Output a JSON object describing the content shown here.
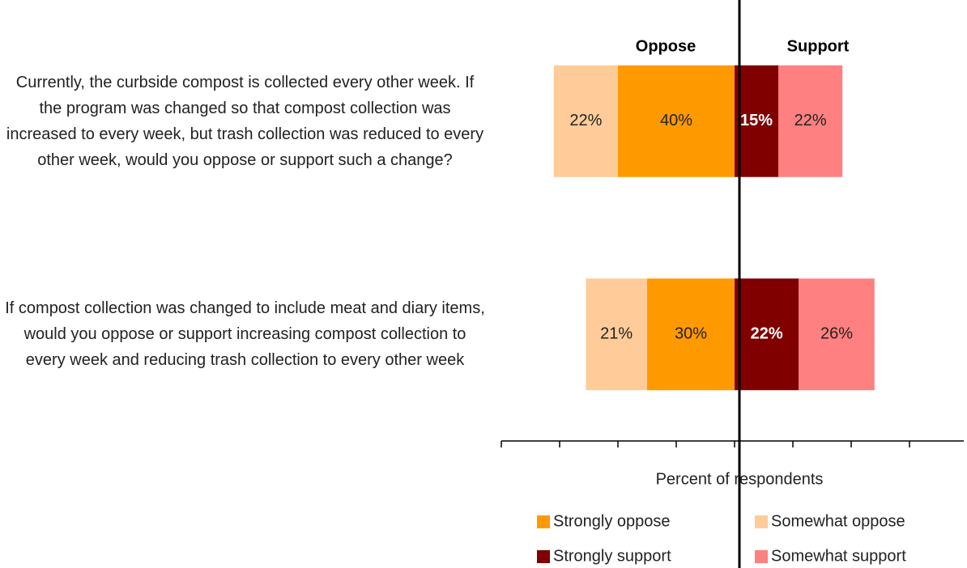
{
  "chart_data": {
    "type": "diverging_bar",
    "categories": [
      "Currently, the curbside compost is collected every other week. If the program was changed so that compost collection was increased to every week, but trash collection was reduced to every other week, would you oppose or support such a change?",
      "If compost collection was changed to include meat and diary items, would you oppose or support increasing compost collection to every week and reducing trash collection to every other week"
    ],
    "group_labels": [
      "Oppose",
      "Support"
    ],
    "series": [
      {
        "name": "Strongly oppose",
        "color": "#ff9900",
        "side": "left",
        "text_color": "#222222",
        "bold": false,
        "values": [
          40,
          30
        ],
        "value_labels": [
          "40%",
          "30%"
        ]
      },
      {
        "name": "Somewhat oppose",
        "color": "#ffcc99",
        "side": "left",
        "text_color": "#222222",
        "bold": false,
        "values": [
          22,
          21
        ],
        "value_labels": [
          "22%",
          "21%"
        ]
      },
      {
        "name": "Strongly support",
        "color": "#800000",
        "side": "right",
        "text_color": "#ffffff",
        "bold": true,
        "values": [
          15,
          22
        ],
        "value_labels": [
          "15%",
          "22%"
        ]
      },
      {
        "name": "Somewhat support",
        "color": "#ff8080",
        "side": "right",
        "text_color": "#222222",
        "bold": false,
        "values": [
          22,
          26
        ],
        "value_labels": [
          "22%",
          "26%"
        ]
      }
    ],
    "xlim": [
      -80,
      80
    ],
    "xticks": [
      -80,
      -60,
      -40,
      -20,
      0,
      20,
      40,
      60,
      80
    ],
    "xlabel": "Percent of respondents"
  }
}
